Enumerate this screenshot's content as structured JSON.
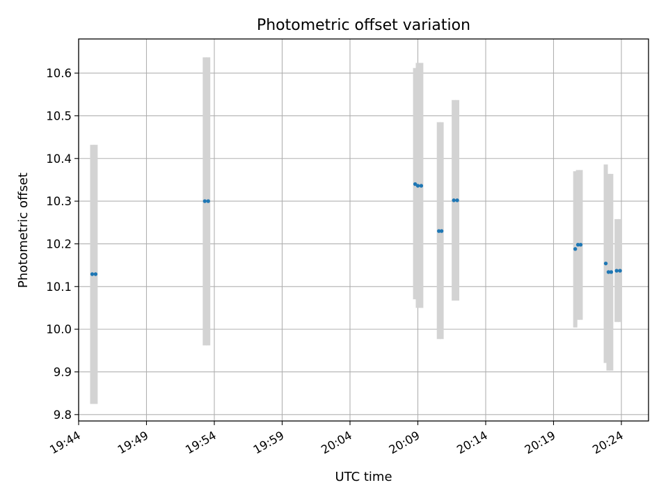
{
  "chart_data": {
    "type": "scatter",
    "title": "Photometric offset variation",
    "xlabel": "UTC time",
    "ylabel": "Photometric offset",
    "grid": true,
    "x_axis_kind": "time",
    "x_tick_labels": [
      "19:44",
      "19:49",
      "19:54",
      "19:59",
      "20:04",
      "20:09",
      "20:14",
      "20:19",
      "20:24"
    ],
    "xlim": [
      "19:44:00",
      "20:26:00"
    ],
    "ylim": [
      9.785,
      10.68
    ],
    "y_ticks": [
      9.8,
      9.9,
      10.0,
      10.1,
      10.2,
      10.3,
      10.4,
      10.5,
      10.6
    ],
    "colors": {
      "marker": "#1f77b4",
      "errorbar": "#d3d3d3",
      "grid": "#b0b0b0"
    },
    "series": [
      {
        "points": [
          {
            "time": "19:45:00",
            "y": 10.129,
            "yerr_low": 9.825,
            "yerr_high": 10.432
          },
          {
            "time": "19:45:15",
            "y": 10.129,
            "yerr_low": 9.825,
            "yerr_high": 10.432
          },
          {
            "time": "19:53:18",
            "y": 10.3,
            "yerr_low": 9.962,
            "yerr_high": 10.637
          },
          {
            "time": "19:53:33",
            "y": 10.3,
            "yerr_low": 9.962,
            "yerr_high": 10.637
          },
          {
            "time": "20:08:48",
            "y": 10.34,
            "yerr_low": 10.07,
            "yerr_high": 10.612
          },
          {
            "time": "20:09:00",
            "y": 10.336,
            "yerr_low": 10.05,
            "yerr_high": 10.624
          },
          {
            "time": "20:09:15",
            "y": 10.336,
            "yerr_low": 10.05,
            "yerr_high": 10.624
          },
          {
            "time": "20:10:33",
            "y": 10.23,
            "yerr_low": 9.977,
            "yerr_high": 10.485
          },
          {
            "time": "20:10:45",
            "y": 10.23,
            "yerr_low": 9.977,
            "yerr_high": 10.485
          },
          {
            "time": "20:11:39",
            "y": 10.302,
            "yerr_low": 10.067,
            "yerr_high": 10.537
          },
          {
            "time": "20:11:54",
            "y": 10.302,
            "yerr_low": 10.067,
            "yerr_high": 10.537
          },
          {
            "time": "20:20:36",
            "y": 10.188,
            "yerr_low": 10.004,
            "yerr_high": 10.37
          },
          {
            "time": "20:20:48",
            "y": 10.198,
            "yerr_low": 10.022,
            "yerr_high": 10.373
          },
          {
            "time": "20:21:00",
            "y": 10.198,
            "yerr_low": 10.022,
            "yerr_high": 10.373
          },
          {
            "time": "20:22:51",
            "y": 10.154,
            "yerr_low": 9.921,
            "yerr_high": 10.386
          },
          {
            "time": "20:23:03",
            "y": 10.134,
            "yerr_low": 9.903,
            "yerr_high": 10.364
          },
          {
            "time": "20:23:15",
            "y": 10.134,
            "yerr_low": 9.903,
            "yerr_high": 10.364
          },
          {
            "time": "20:23:39",
            "y": 10.137,
            "yerr_low": 10.017,
            "yerr_high": 10.258
          },
          {
            "time": "20:23:54",
            "y": 10.137,
            "yerr_low": 10.017,
            "yerr_high": 10.258
          }
        ]
      }
    ]
  }
}
